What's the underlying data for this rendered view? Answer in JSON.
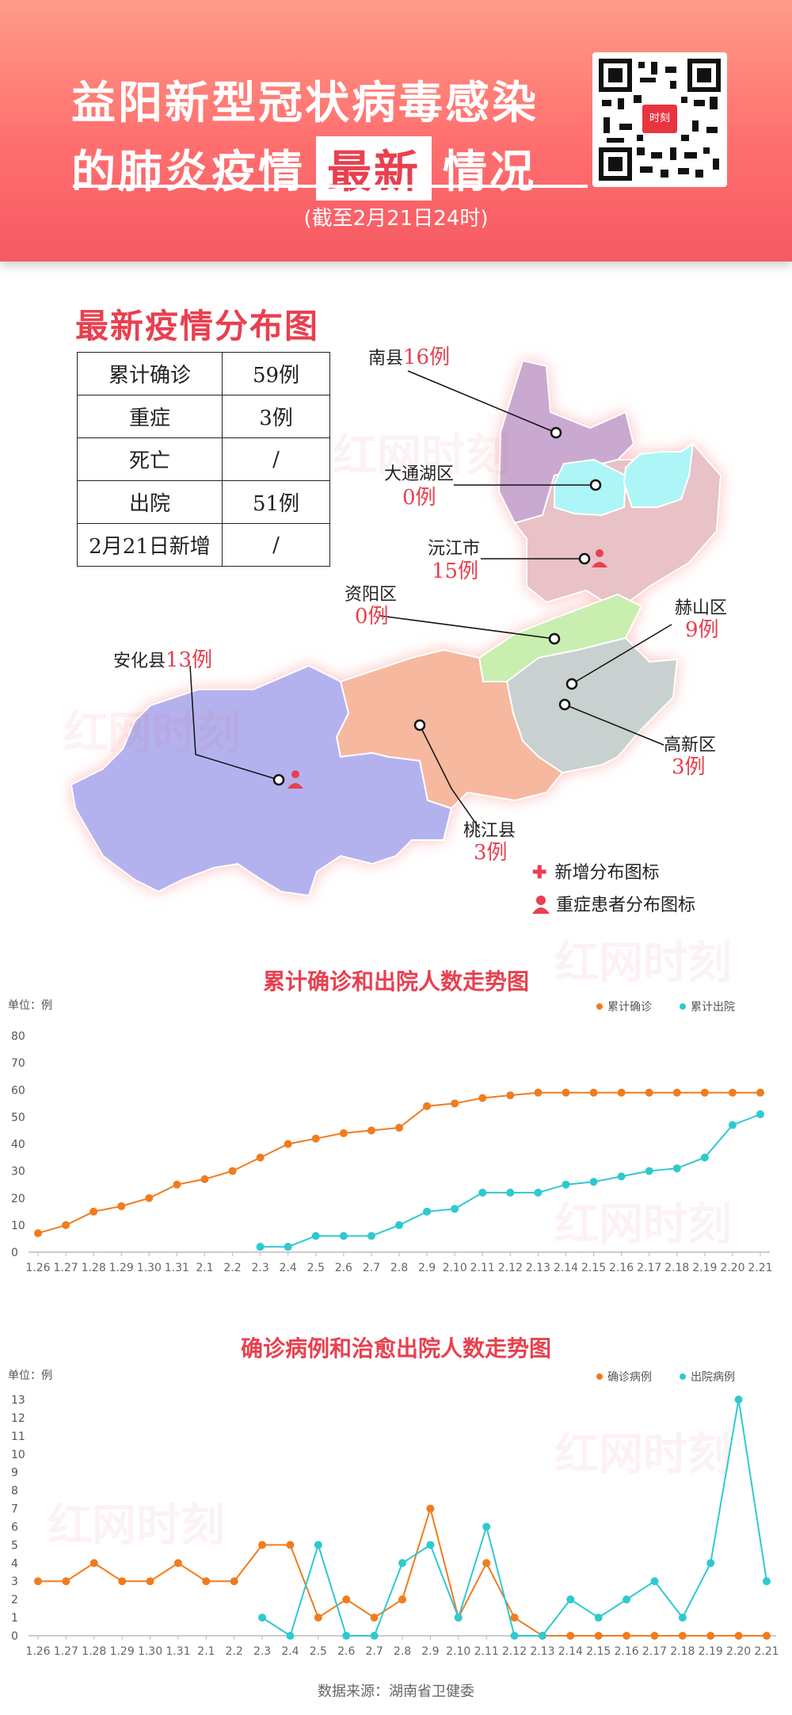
{
  "header": {
    "line1": "益阳新型冠状病毒感染",
    "line2_pre": "的肺炎疫情",
    "line2_box": "最新",
    "line2_post": "情况",
    "subtitle": "(截至2月21日24时)",
    "qr_logo": "时刻"
  },
  "watermark": "红网时刻",
  "map_section": {
    "title": "最新疫情分布图",
    "stats": [
      {
        "label": "累计确诊",
        "value": "59例"
      },
      {
        "label": "重症",
        "value": "3例"
      },
      {
        "label": "死亡",
        "value": "/"
      },
      {
        "label": "出院",
        "value": "51例"
      },
      {
        "label": "2月21日新增",
        "value": "/"
      }
    ],
    "regions": {
      "nanxian": {
        "name": "南县",
        "count": "16例"
      },
      "datonghu": {
        "name": "大通湖区",
        "count": "0例"
      },
      "yuanjiang": {
        "name": "沅江市",
        "count": "15例"
      },
      "ziyang": {
        "name": "资阳区",
        "count": "0例"
      },
      "heshan": {
        "name": "赫山区",
        "count": "9例"
      },
      "gaoxin": {
        "name": "高新区",
        "count": "3例"
      },
      "anhua": {
        "name": "安化县",
        "count": "13例"
      },
      "taojiang": {
        "name": "桃江县",
        "count": "3例"
      }
    },
    "region_colors": {
      "nanxian": "#c9a9d0",
      "datonghu": "#aef5f7",
      "yuanjiang": "#e8c2c6",
      "ziyang": "#c9eeb0",
      "heshan": "#c8d0d0",
      "taojiang": "#f6b89e",
      "anhua": "#b4b2ee"
    },
    "legend": {
      "new_cases": "新增分布图标",
      "severe": "重症患者分布图标"
    }
  },
  "chart_data": [
    {
      "type": "line",
      "title": "累计确诊和出院人数走势图",
      "unit_label": "单位：例",
      "x": [
        "1.26",
        "1.27",
        "1.28",
        "1.29",
        "1.30",
        "1.31",
        "2.1",
        "2.2",
        "2.3",
        "2.4",
        "2.5",
        "2.6",
        "2.7",
        "2.8",
        "2.9",
        "2.10",
        "2.11",
        "2.12",
        "2.13",
        "2.14",
        "2.15",
        "2.16",
        "2.17",
        "2.18",
        "2.19",
        "2.20",
        "2.21"
      ],
      "ylim": [
        0,
        80
      ],
      "yticks": [
        0,
        10,
        20,
        30,
        40,
        50,
        60,
        70,
        80
      ],
      "grid": false,
      "legend_position": "top-right",
      "series": [
        {
          "name": "累计确诊",
          "color": "#f07c1e",
          "values": [
            7,
            10,
            15,
            17,
            20,
            25,
            27,
            30,
            35,
            40,
            42,
            44,
            45,
            46,
            54,
            55,
            57,
            58,
            59,
            59,
            59,
            59,
            59,
            59,
            59,
            59,
            59
          ]
        },
        {
          "name": "累计出院",
          "color": "#2ec9d0",
          "values": [
            null,
            null,
            null,
            null,
            null,
            null,
            null,
            null,
            2,
            2,
            6,
            6,
            6,
            10,
            15,
            16,
            22,
            22,
            22,
            25,
            26,
            28,
            30,
            31,
            35,
            47,
            51
          ]
        }
      ]
    },
    {
      "type": "line",
      "title": "确诊病例和治愈出院人数走势图",
      "unit_label": "单位：例",
      "x": [
        "1.26",
        "1.27",
        "1.28",
        "1.29",
        "1.30",
        "1.31",
        "2.1",
        "2.2",
        "2.3",
        "2.4",
        "2.5",
        "2.6",
        "2.7",
        "2.8",
        "2.9",
        "2.10",
        "2.11",
        "2.12",
        "2.13",
        "2.14",
        "2.15",
        "2.16",
        "2.17",
        "2.18",
        "2.19",
        "2.20",
        "2.21"
      ],
      "ylim": [
        0,
        13
      ],
      "yticks": [
        0,
        1,
        2,
        3,
        4,
        5,
        6,
        7,
        8,
        9,
        10,
        11,
        12,
        13
      ],
      "grid": false,
      "legend_position": "top-right",
      "series": [
        {
          "name": "确诊病例",
          "color": "#f07c1e",
          "values": [
            3,
            3,
            4,
            3,
            3,
            4,
            3,
            3,
            5,
            5,
            1,
            2,
            1,
            2,
            7,
            1,
            4,
            1,
            0,
            0,
            0,
            0,
            0,
            0,
            0,
            0,
            0
          ]
        },
        {
          "name": "出院病例",
          "color": "#2ec9d0",
          "values": [
            null,
            null,
            null,
            null,
            null,
            null,
            null,
            null,
            1,
            0,
            5,
            0,
            0,
            4,
            5,
            1,
            6,
            0,
            0,
            2,
            1,
            2,
            3,
            1,
            4,
            13,
            3
          ]
        }
      ]
    }
  ],
  "source": "数据来源：湖南省卫健委"
}
